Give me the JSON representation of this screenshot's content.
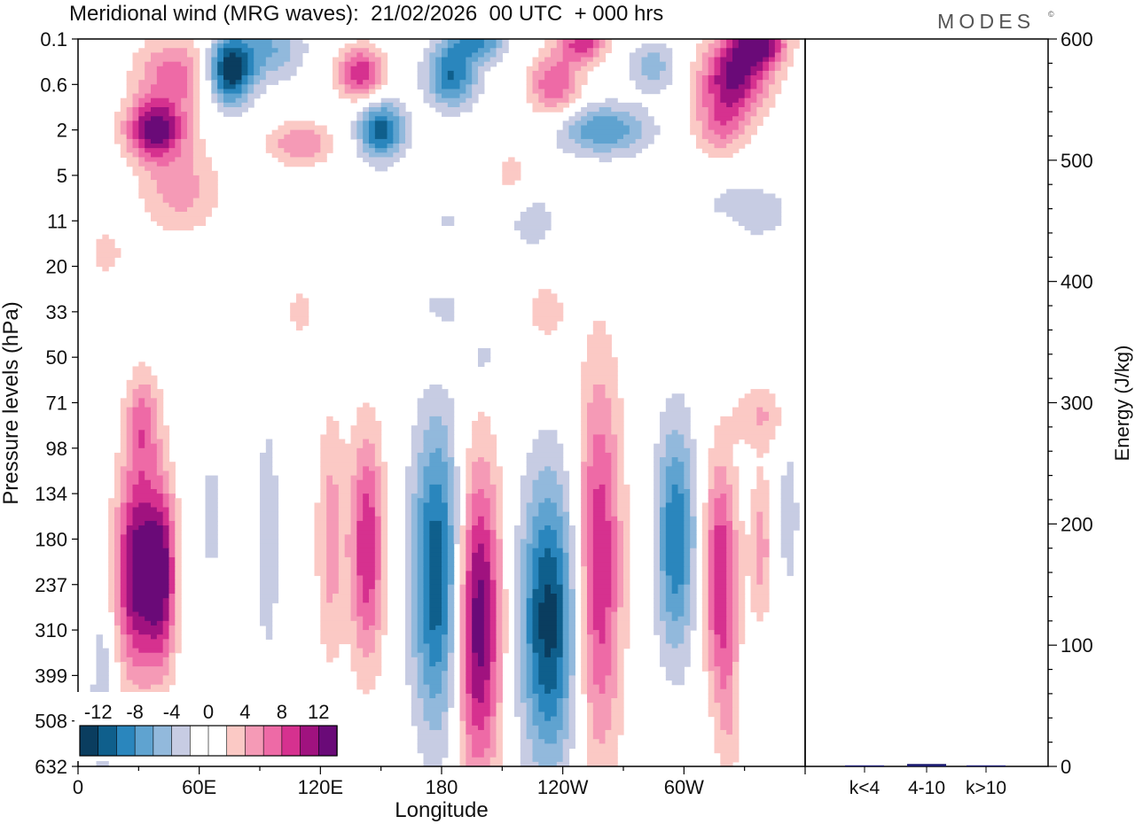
{
  "chart_data": {
    "type": "heatmap",
    "title": "Meridional wind (MRG waves):  21/02/2026  00 UTC  + 000 hrs",
    "brand": "MODES",
    "brand_mark": "©",
    "xlabel": "Longitude",
    "ylabel": "Pressure levels (hPa)",
    "x_ticks": [
      "0",
      "60E",
      "120E",
      "180",
      "120W",
      "60W"
    ],
    "x_tick_degrees": [
      0,
      60,
      120,
      180,
      240,
      300
    ],
    "x_range": [
      0,
      360
    ],
    "pressure_levels": [
      "0.1",
      "0.6",
      "2",
      "5",
      "11",
      "20",
      "33",
      "50",
      "71",
      "98",
      "134",
      "180",
      "237",
      "310",
      "399",
      "508",
      "632"
    ],
    "colorbar": {
      "labels": [
        "-12",
        "-8",
        "-4",
        "0",
        "4",
        "8",
        "12"
      ],
      "levels": [
        -14,
        -12,
        -10,
        -8,
        -6,
        -4,
        -2,
        0,
        2,
        4,
        6,
        8,
        10,
        12,
        14
      ],
      "colors": [
        "#0a3d5f",
        "#0f5f8c",
        "#2a86bd",
        "#5fa3d0",
        "#92b9dc",
        "#c7cce3",
        "#ffffff",
        "#ffffff",
        "#fbc9c5",
        "#f59ab6",
        "#ee6aa6",
        "#d6318f",
        "#a0127f",
        "#6a0a78"
      ]
    },
    "energy_panel": {
      "ylabel": "Energy (J/kg)",
      "y_ticks": [
        "0",
        "100",
        "200",
        "300",
        "400",
        "500",
        "600"
      ],
      "y_range": [
        0,
        600
      ],
      "categories": [
        "k<4",
        "4-10",
        "k>10"
      ],
      "values": [
        0,
        2,
        0
      ],
      "bar_color": "#1a1a6e"
    },
    "features": [
      {
        "lon": 30,
        "lev": 11.7,
        "value": 14,
        "wl": 8,
        "wk": 1.6
      },
      {
        "lon": 42,
        "lev": 11.8,
        "value": 10,
        "wl": 5,
        "wk": 1.4
      },
      {
        "lon": 32,
        "lev": 8.4,
        "value": 6,
        "wl": 6,
        "wk": 0.8
      },
      {
        "lon": 94,
        "lev": 11.0,
        "value": -3,
        "wl": 5,
        "wk": 2.5
      },
      {
        "lon": 66,
        "lev": 10.5,
        "value": -3,
        "wl": 3,
        "wk": 1.2
      },
      {
        "lon": 12,
        "lev": 14.5,
        "value": -4,
        "wl": 4,
        "wk": 1.5
      },
      {
        "lon": 125,
        "lev": 11.0,
        "value": 5,
        "wl": 5,
        "wk": 2.0
      },
      {
        "lon": 143,
        "lev": 11.2,
        "value": 10,
        "wl": 6,
        "wk": 1.8
      },
      {
        "lon": 178,
        "lev": 11.8,
        "value": -12,
        "wl": 9,
        "wk": 2.4
      },
      {
        "lon": 198,
        "lev": 12.8,
        "value": 14,
        "wl": 8,
        "wk": 2.4
      },
      {
        "lon": 233,
        "lev": 12.8,
        "value": -13,
        "wl": 10,
        "wk": 2.2
      },
      {
        "lon": 258,
        "lev": 11.6,
        "value": 10,
        "wl": 8,
        "wk": 3.0
      },
      {
        "lon": 296,
        "lev": 11.0,
        "value": -10,
        "wl": 7,
        "wk": 1.8
      },
      {
        "lon": 318,
        "lev": 11.8,
        "value": 10,
        "wl": 6,
        "wk": 1.8
      },
      {
        "lon": 338,
        "lev": 11.2,
        "value": 5,
        "wl": 4,
        "wk": 1.2
      },
      {
        "lon": 352,
        "lev": 10.5,
        "value": -3,
        "wl": 4,
        "wk": 1.5
      },
      {
        "lon": 338,
        "lev": 8.3,
        "value": 4,
        "wl": 9,
        "wk": 0.5
      },
      {
        "lon": 322,
        "lev": 15.0,
        "value": 3,
        "wl": 4,
        "wk": 1.5
      },
      {
        "lon": 200,
        "lev": 7.0,
        "value": -3,
        "wl": 6,
        "wk": 0.4
      },
      {
        "lon": 175,
        "lev": 6.7,
        "value": 3,
        "wl": 8,
        "wk": 0.5
      },
      {
        "lon": 232,
        "lev": 6.0,
        "value": 3,
        "wl": 8,
        "wk": 0.6
      },
      {
        "lon": 50,
        "lev": 3.3,
        "value": 5,
        "wl": 14,
        "wk": 0.7
      },
      {
        "lon": 48,
        "lev": 0.8,
        "value": 7,
        "wl": 14,
        "wk": 0.6
      },
      {
        "lon": 38,
        "lev": 2.0,
        "value": 13,
        "wl": 10,
        "wk": 0.45
      },
      {
        "lon": 75,
        "lev": 0.7,
        "value": -14,
        "wl": 8,
        "wk": 0.55
      },
      {
        "lon": 95,
        "lev": 0.2,
        "value": -6,
        "wl": 12,
        "wk": 0.5
      },
      {
        "lon": 110,
        "lev": 2.3,
        "value": 6,
        "wl": 11,
        "wk": 0.35
      },
      {
        "lon": 150,
        "lev": 2.0,
        "value": -11,
        "wl": 8,
        "wk": 0.45
      },
      {
        "lon": 140,
        "lev": 0.75,
        "value": 10,
        "wl": 8,
        "wk": 0.4
      },
      {
        "lon": 185,
        "lev": 0.8,
        "value": -10,
        "wl": 9,
        "wk": 0.5
      },
      {
        "lon": 198,
        "lev": 0.05,
        "value": -8,
        "wl": 10,
        "wk": 0.3
      },
      {
        "lon": 236,
        "lev": 1.0,
        "value": 8,
        "wl": 9,
        "wk": 0.5
      },
      {
        "lon": 250,
        "lev": 0.1,
        "value": 9,
        "wl": 8,
        "wk": 0.3
      },
      {
        "lon": 260,
        "lev": 2.0,
        "value": -8,
        "wl": 16,
        "wk": 0.4
      },
      {
        "lon": 285,
        "lev": 0.6,
        "value": -5,
        "wl": 9,
        "wk": 0.4
      },
      {
        "lon": 325,
        "lev": 0.8,
        "value": 12,
        "wl": 12,
        "wk": 0.6
      },
      {
        "lon": 338,
        "lev": 0.1,
        "value": 12,
        "wl": 9,
        "wk": 0.35
      },
      {
        "lon": 318,
        "lev": 1.9,
        "value": 6,
        "wl": 9,
        "wk": 0.5
      },
      {
        "lon": 330,
        "lev": 3.8,
        "value": -4,
        "wl": 16,
        "wk": 0.45
      },
      {
        "lon": 225,
        "lev": 4.0,
        "value": -3,
        "wl": 9,
        "wk": 0.6
      },
      {
        "lon": 170,
        "lev": 4.0,
        "value": -3,
        "wl": 18,
        "wk": 0.6
      },
      {
        "lon": 165,
        "lev": 4.1,
        "value": 4,
        "wl": 8,
        "wk": 0.5
      },
      {
        "lon": 320,
        "lev": 4.3,
        "value": 3,
        "wl": 6,
        "wk": 0.35
      },
      {
        "lon": 215,
        "lev": 3.0,
        "value": 3,
        "wl": 8,
        "wk": 0.45
      },
      {
        "lon": 110,
        "lev": 6.0,
        "value": 3,
        "wl": 5,
        "wk": 0.4
      },
      {
        "lon": 180,
        "lev": 6.0,
        "value": -3,
        "wl": 8,
        "wk": 0.35
      },
      {
        "lon": 14,
        "lev": 4.7,
        "value": 3,
        "wl": 6,
        "wk": 0.4
      }
    ]
  }
}
